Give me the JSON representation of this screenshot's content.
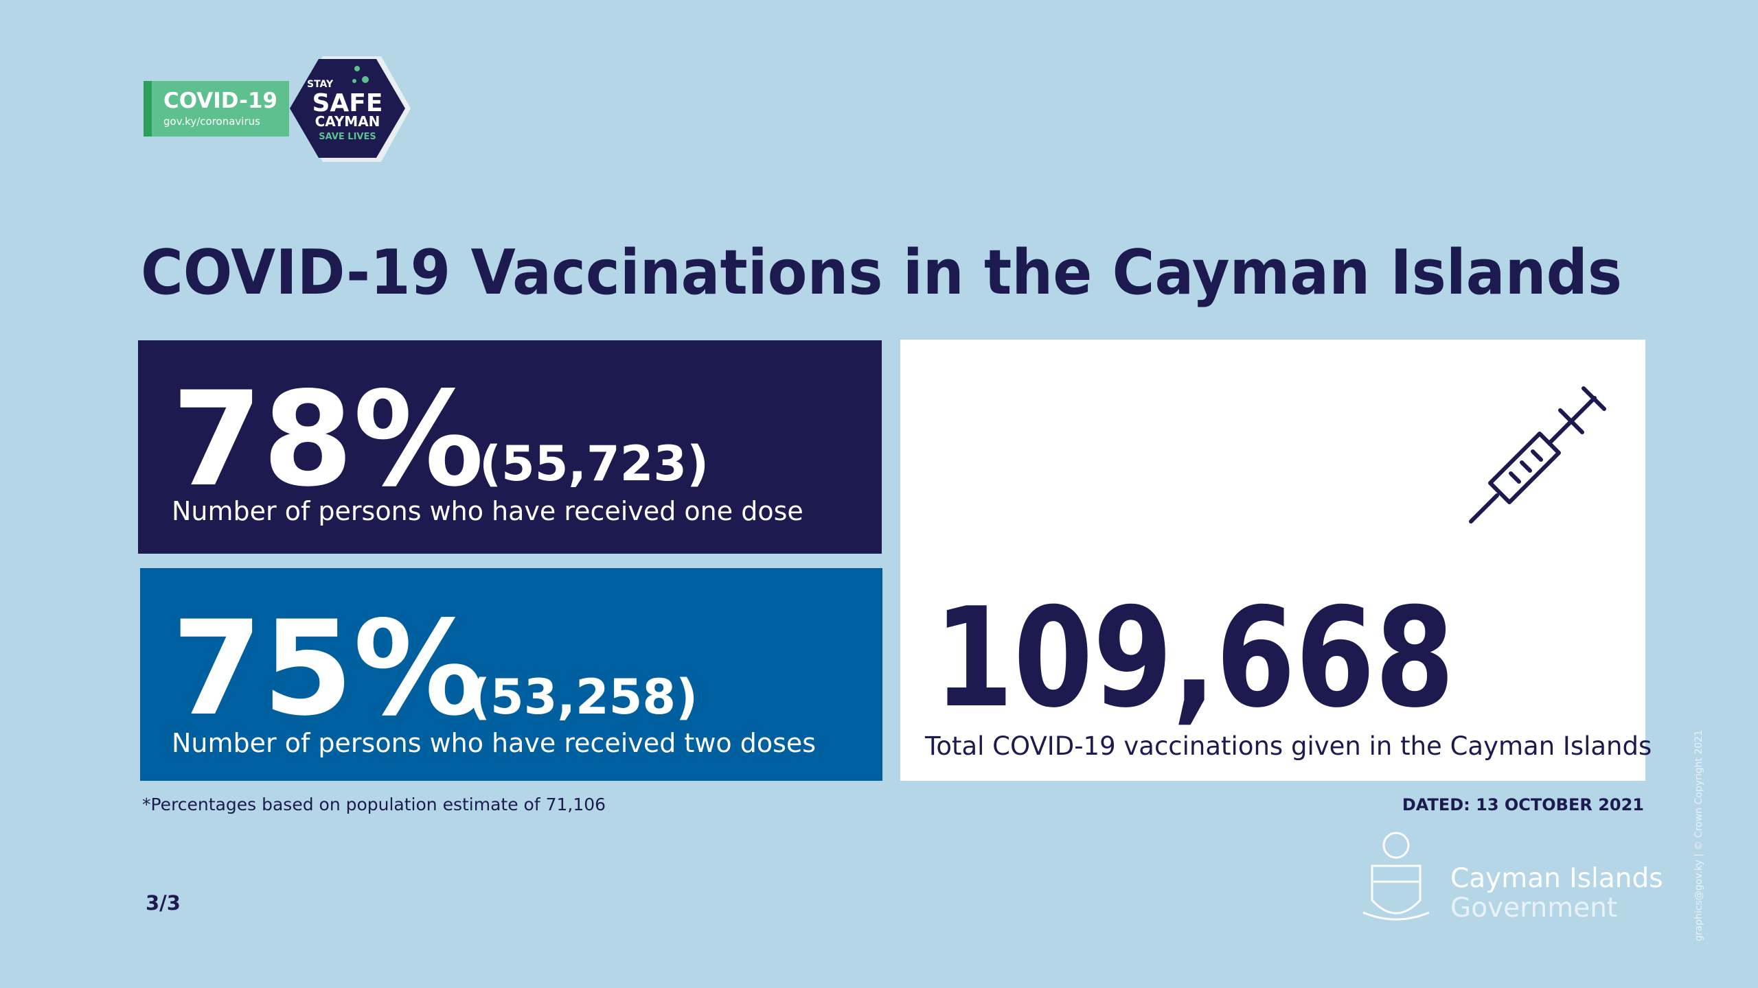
{
  "logo": {
    "covid": "COVID-19",
    "url": "gov.ky/coronavirus",
    "stay": "STAY",
    "safe": "SAFE",
    "cayman": "CAYMAN",
    "save": "SAVE LIVES"
  },
  "title": "COVID-19 Vaccinations in the Cayman Islands",
  "stats": [
    {
      "percent": "78%",
      "count": "(55,723)",
      "label": "Number of persons who have received one dose"
    },
    {
      "percent": "75%",
      "count": "(53,258)",
      "label": "Number of persons who have received two doses"
    }
  ],
  "total": {
    "value": "109,668",
    "label": "Total COVID-19 vaccinations given in the Cayman Islands"
  },
  "footnote": "*Percentages based on population estimate of 71,106",
  "dated": "DATED: 13 OCTOBER 2021",
  "page": "3/3",
  "government": {
    "line1": "Cayman Islands",
    "line2": "Government"
  },
  "credit": "graphics@gov.ky | © Crown Copyright 2021"
}
